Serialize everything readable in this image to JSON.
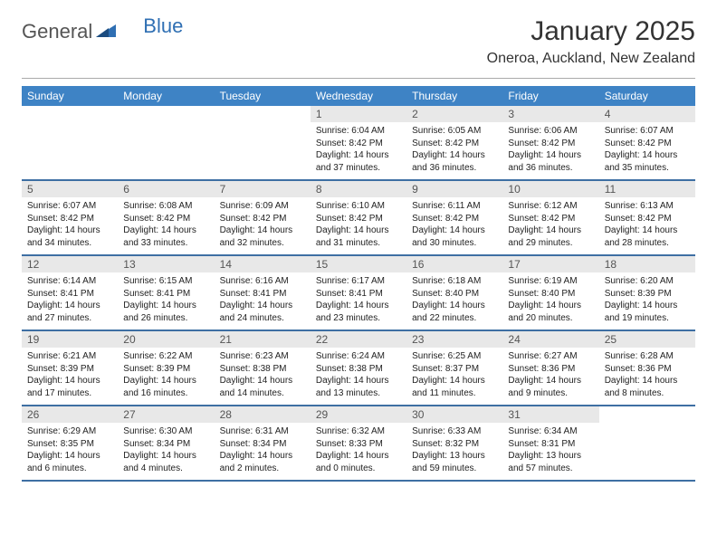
{
  "logo": {
    "text1": "General",
    "text2": "Blue"
  },
  "title": "January 2025",
  "location": "Oneroa, Auckland, New Zealand",
  "colors": {
    "header_bg": "#3e83c5",
    "row_border": "#3e6fa3",
    "daynum_bg": "#e8e8e8",
    "logo_blue": "#2f6fb3"
  },
  "weekdays": [
    "Sunday",
    "Monday",
    "Tuesday",
    "Wednesday",
    "Thursday",
    "Friday",
    "Saturday"
  ],
  "weeks": [
    [
      {
        "empty": true
      },
      {
        "empty": true
      },
      {
        "empty": true
      },
      {
        "day": "1",
        "sunrise": "Sunrise: 6:04 AM",
        "sunset": "Sunset: 8:42 PM",
        "daylight1": "Daylight: 14 hours",
        "daylight2": "and 37 minutes."
      },
      {
        "day": "2",
        "sunrise": "Sunrise: 6:05 AM",
        "sunset": "Sunset: 8:42 PM",
        "daylight1": "Daylight: 14 hours",
        "daylight2": "and 36 minutes."
      },
      {
        "day": "3",
        "sunrise": "Sunrise: 6:06 AM",
        "sunset": "Sunset: 8:42 PM",
        "daylight1": "Daylight: 14 hours",
        "daylight2": "and 36 minutes."
      },
      {
        "day": "4",
        "sunrise": "Sunrise: 6:07 AM",
        "sunset": "Sunset: 8:42 PM",
        "daylight1": "Daylight: 14 hours",
        "daylight2": "and 35 minutes."
      }
    ],
    [
      {
        "day": "5",
        "sunrise": "Sunrise: 6:07 AM",
        "sunset": "Sunset: 8:42 PM",
        "daylight1": "Daylight: 14 hours",
        "daylight2": "and 34 minutes."
      },
      {
        "day": "6",
        "sunrise": "Sunrise: 6:08 AM",
        "sunset": "Sunset: 8:42 PM",
        "daylight1": "Daylight: 14 hours",
        "daylight2": "and 33 minutes."
      },
      {
        "day": "7",
        "sunrise": "Sunrise: 6:09 AM",
        "sunset": "Sunset: 8:42 PM",
        "daylight1": "Daylight: 14 hours",
        "daylight2": "and 32 minutes."
      },
      {
        "day": "8",
        "sunrise": "Sunrise: 6:10 AM",
        "sunset": "Sunset: 8:42 PM",
        "daylight1": "Daylight: 14 hours",
        "daylight2": "and 31 minutes."
      },
      {
        "day": "9",
        "sunrise": "Sunrise: 6:11 AM",
        "sunset": "Sunset: 8:42 PM",
        "daylight1": "Daylight: 14 hours",
        "daylight2": "and 30 minutes."
      },
      {
        "day": "10",
        "sunrise": "Sunrise: 6:12 AM",
        "sunset": "Sunset: 8:42 PM",
        "daylight1": "Daylight: 14 hours",
        "daylight2": "and 29 minutes."
      },
      {
        "day": "11",
        "sunrise": "Sunrise: 6:13 AM",
        "sunset": "Sunset: 8:42 PM",
        "daylight1": "Daylight: 14 hours",
        "daylight2": "and 28 minutes."
      }
    ],
    [
      {
        "day": "12",
        "sunrise": "Sunrise: 6:14 AM",
        "sunset": "Sunset: 8:41 PM",
        "daylight1": "Daylight: 14 hours",
        "daylight2": "and 27 minutes."
      },
      {
        "day": "13",
        "sunrise": "Sunrise: 6:15 AM",
        "sunset": "Sunset: 8:41 PM",
        "daylight1": "Daylight: 14 hours",
        "daylight2": "and 26 minutes."
      },
      {
        "day": "14",
        "sunrise": "Sunrise: 6:16 AM",
        "sunset": "Sunset: 8:41 PM",
        "daylight1": "Daylight: 14 hours",
        "daylight2": "and 24 minutes."
      },
      {
        "day": "15",
        "sunrise": "Sunrise: 6:17 AM",
        "sunset": "Sunset: 8:41 PM",
        "daylight1": "Daylight: 14 hours",
        "daylight2": "and 23 minutes."
      },
      {
        "day": "16",
        "sunrise": "Sunrise: 6:18 AM",
        "sunset": "Sunset: 8:40 PM",
        "daylight1": "Daylight: 14 hours",
        "daylight2": "and 22 minutes."
      },
      {
        "day": "17",
        "sunrise": "Sunrise: 6:19 AM",
        "sunset": "Sunset: 8:40 PM",
        "daylight1": "Daylight: 14 hours",
        "daylight2": "and 20 minutes."
      },
      {
        "day": "18",
        "sunrise": "Sunrise: 6:20 AM",
        "sunset": "Sunset: 8:39 PM",
        "daylight1": "Daylight: 14 hours",
        "daylight2": "and 19 minutes."
      }
    ],
    [
      {
        "day": "19",
        "sunrise": "Sunrise: 6:21 AM",
        "sunset": "Sunset: 8:39 PM",
        "daylight1": "Daylight: 14 hours",
        "daylight2": "and 17 minutes."
      },
      {
        "day": "20",
        "sunrise": "Sunrise: 6:22 AM",
        "sunset": "Sunset: 8:39 PM",
        "daylight1": "Daylight: 14 hours",
        "daylight2": "and 16 minutes."
      },
      {
        "day": "21",
        "sunrise": "Sunrise: 6:23 AM",
        "sunset": "Sunset: 8:38 PM",
        "daylight1": "Daylight: 14 hours",
        "daylight2": "and 14 minutes."
      },
      {
        "day": "22",
        "sunrise": "Sunrise: 6:24 AM",
        "sunset": "Sunset: 8:38 PM",
        "daylight1": "Daylight: 14 hours",
        "daylight2": "and 13 minutes."
      },
      {
        "day": "23",
        "sunrise": "Sunrise: 6:25 AM",
        "sunset": "Sunset: 8:37 PM",
        "daylight1": "Daylight: 14 hours",
        "daylight2": "and 11 minutes."
      },
      {
        "day": "24",
        "sunrise": "Sunrise: 6:27 AM",
        "sunset": "Sunset: 8:36 PM",
        "daylight1": "Daylight: 14 hours",
        "daylight2": "and 9 minutes."
      },
      {
        "day": "25",
        "sunrise": "Sunrise: 6:28 AM",
        "sunset": "Sunset: 8:36 PM",
        "daylight1": "Daylight: 14 hours",
        "daylight2": "and 8 minutes."
      }
    ],
    [
      {
        "day": "26",
        "sunrise": "Sunrise: 6:29 AM",
        "sunset": "Sunset: 8:35 PM",
        "daylight1": "Daylight: 14 hours",
        "daylight2": "and 6 minutes."
      },
      {
        "day": "27",
        "sunrise": "Sunrise: 6:30 AM",
        "sunset": "Sunset: 8:34 PM",
        "daylight1": "Daylight: 14 hours",
        "daylight2": "and 4 minutes."
      },
      {
        "day": "28",
        "sunrise": "Sunrise: 6:31 AM",
        "sunset": "Sunset: 8:34 PM",
        "daylight1": "Daylight: 14 hours",
        "daylight2": "and 2 minutes."
      },
      {
        "day": "29",
        "sunrise": "Sunrise: 6:32 AM",
        "sunset": "Sunset: 8:33 PM",
        "daylight1": "Daylight: 14 hours",
        "daylight2": "and 0 minutes."
      },
      {
        "day": "30",
        "sunrise": "Sunrise: 6:33 AM",
        "sunset": "Sunset: 8:32 PM",
        "daylight1": "Daylight: 13 hours",
        "daylight2": "and 59 minutes."
      },
      {
        "day": "31",
        "sunrise": "Sunrise: 6:34 AM",
        "sunset": "Sunset: 8:31 PM",
        "daylight1": "Daylight: 13 hours",
        "daylight2": "and 57 minutes."
      },
      {
        "empty": true
      }
    ]
  ]
}
